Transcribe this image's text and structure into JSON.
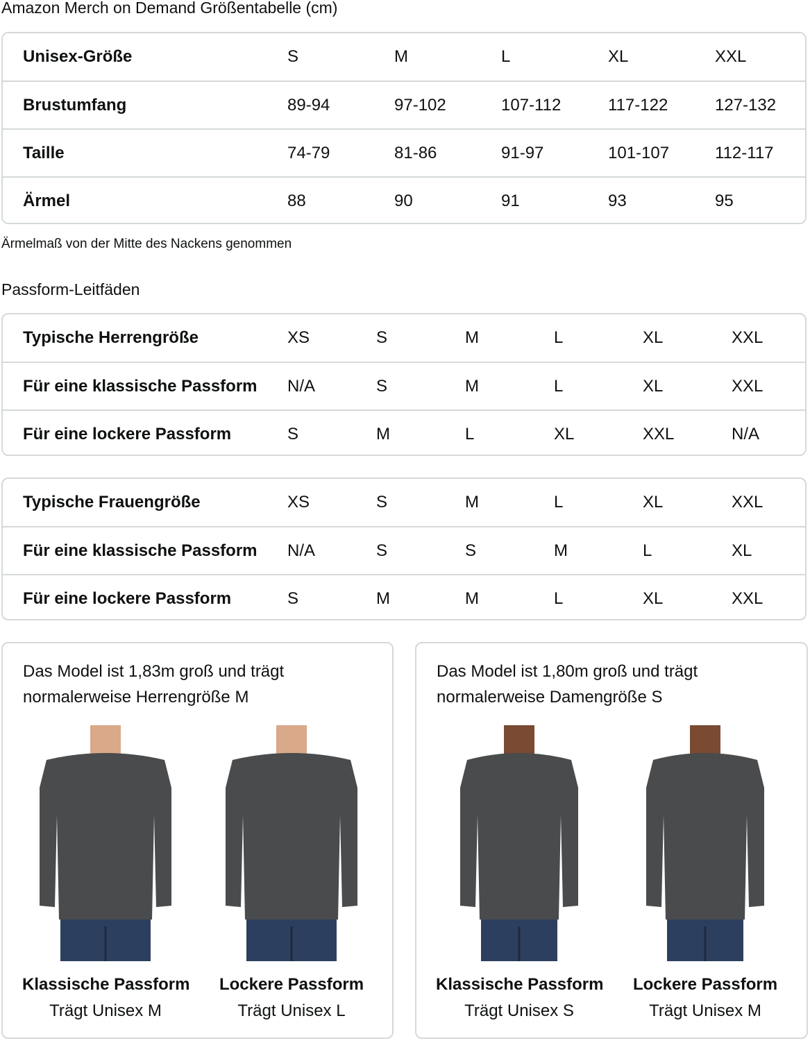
{
  "title": "Amazon Merch on Demand Größentabelle (cm)",
  "size_table": {
    "rows": [
      {
        "label": "Unisex-Größe",
        "values": [
          "S",
          "M",
          "L",
          "XL",
          "XXL"
        ]
      },
      {
        "label": "Brustumfang",
        "values": [
          "89-94",
          "97-102",
          "107-112",
          "117-122",
          "127-132"
        ]
      },
      {
        "label": "Taille",
        "values": [
          "74-79",
          "81-86",
          "91-97",
          "101-107",
          "112-117"
        ]
      },
      {
        "label": "Ärmel",
        "values": [
          "88",
          "90",
          "91",
          "93",
          "95"
        ]
      }
    ]
  },
  "sleeve_note": "Ärmelmaß von der Mitte des Nackens genommen",
  "fit_heading": "Passform-Leitfäden",
  "men_table": {
    "rows": [
      {
        "label": "Typische Herrengröße",
        "values": [
          "XS",
          "S",
          "M",
          "L",
          "XL",
          "XXL"
        ]
      },
      {
        "label": "Für eine klassische Passform",
        "values": [
          "N/A",
          "S",
          "M",
          "L",
          "XL",
          "XXL"
        ]
      },
      {
        "label": "Für eine lockere Passform",
        "values": [
          "S",
          "M",
          "L",
          "XL",
          "XXL",
          "N/A"
        ]
      }
    ]
  },
  "women_table": {
    "rows": [
      {
        "label": "Typische Frauengröße",
        "values": [
          "XS",
          "S",
          "M",
          "L",
          "XL",
          "XXL"
        ]
      },
      {
        "label": "Für eine klassische Passform",
        "values": [
          "N/A",
          "S",
          "S",
          "M",
          "L",
          "XL"
        ]
      },
      {
        "label": "Für eine lockere Passform",
        "values": [
          "S",
          "M",
          "M",
          "L",
          "XL",
          "XXL"
        ]
      }
    ]
  },
  "cards": [
    {
      "caption": "Das Model ist 1,83m groß und trägt normalerweise Herrengröße M",
      "figures": [
        {
          "title": "Klassische Passform",
          "subtitle": "Trägt Unisex M"
        },
        {
          "title": "Lockere Passform",
          "subtitle": "Trägt Unisex L"
        }
      ]
    },
    {
      "caption": "Das Model ist 1,80m groß und trägt normalerweise Damengröße S",
      "figures": [
        {
          "title": "Klassische Passform",
          "subtitle": "Trägt Unisex S"
        },
        {
          "title": "Lockere Passform",
          "subtitle": "Trägt Unisex M"
        }
      ]
    }
  ],
  "colors": {
    "shirt": "#4a4b4d",
    "jeans": "#2d3f5e",
    "skin_m": "#d9a98a",
    "skin_f": "#7a4a32",
    "border": "#d5d9d9"
  }
}
